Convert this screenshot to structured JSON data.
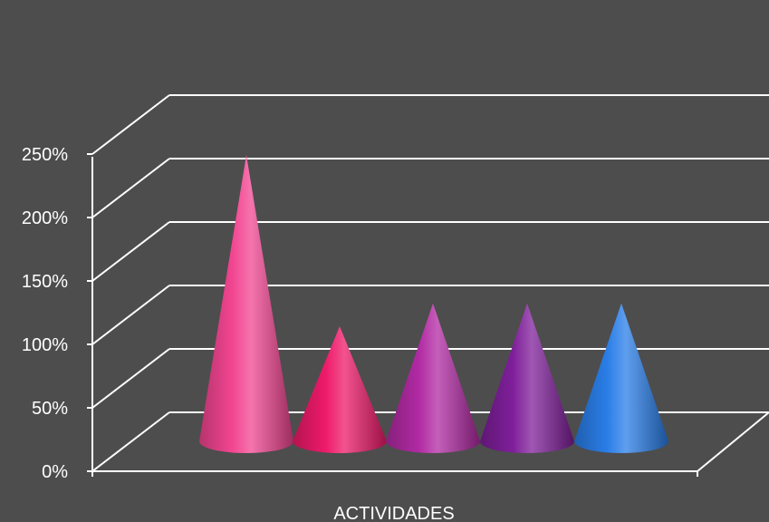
{
  "chart_data": {
    "type": "bar",
    "style": "3d-cone",
    "categories": [
      "",
      "",
      "",
      "",
      ""
    ],
    "values": [
      230,
      95,
      113,
      113,
      113
    ],
    "value_unit": "%",
    "xlabel": "ACTIVIDADES",
    "ylabel": "",
    "ylim": [
      0,
      250
    ],
    "y_ticks": [
      0,
      50,
      100,
      150,
      200,
      250
    ],
    "y_tick_labels": [
      "0%",
      "50%",
      "100%",
      "150%",
      "200%",
      "250%"
    ],
    "grid": true,
    "legend": "none",
    "colors": [
      "#f24591",
      "#ee1a6a",
      "#b12aa3",
      "#7f1f9a",
      "#2a7ee8"
    ],
    "background_color": "#4d4d4d",
    "gridline_color": "#ffffff"
  }
}
